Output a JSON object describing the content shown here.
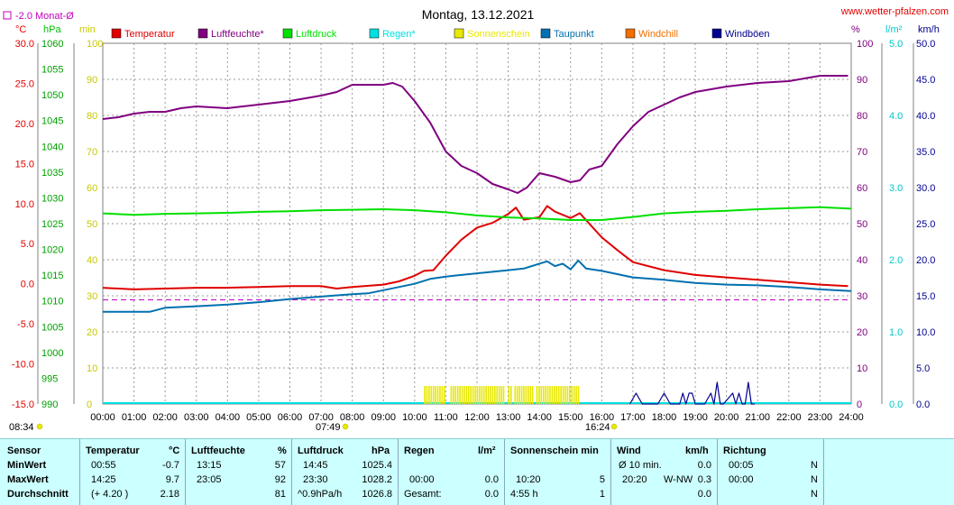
{
  "title": "Montag, 13.12.2021",
  "site": "www.wetter-pfalzen.com",
  "avg_label": "-2.0 Monat-Ø",
  "colors": {
    "temperatur": "#e00000",
    "luftfeuchte": "#800080",
    "luftdruck": "#00e000",
    "regen": "#00e0e0",
    "sonnenschein": "#e8e800",
    "taupunkt": "#0070b0",
    "windchill": "#f07000",
    "windboeen": "#000090"
  },
  "legend": [
    {
      "key": "temperatur",
      "label": "Temperatur"
    },
    {
      "key": "luftfeuchte",
      "label": "Luftfeuchte*"
    },
    {
      "key": "luftdruck",
      "label": "Luftdruck"
    },
    {
      "key": "regen",
      "label": "Regen*"
    },
    {
      "key": "sonnenschein",
      "label": "Sonnenschein"
    },
    {
      "key": "taupunkt",
      "label": "Taupunkt"
    },
    {
      "key": "windchill",
      "label": "Windchill"
    },
    {
      "key": "windboeen",
      "label": "Windböen"
    }
  ],
  "axis_units": {
    "temp": "°C",
    "press": "hPa",
    "sun": "min",
    "hum": "%",
    "rain": "l/m²",
    "wind": "km/h"
  },
  "sunrise": "07:49",
  "sunset": "16:24",
  "daylen": "08:34",
  "chart_data": {
    "type": "line",
    "x_ticks": [
      "00:00",
      "01:00",
      "02:00",
      "03:00",
      "04:00",
      "05:00",
      "06:00",
      "07:00",
      "08:00",
      "09:00",
      "10:00",
      "11:00",
      "12:00",
      "13:00",
      "14:00",
      "15:00",
      "16:00",
      "17:00",
      "18:00",
      "19:00",
      "20:00",
      "21:00",
      "22:00",
      "23:00",
      "24:00"
    ],
    "axes": {
      "temp": {
        "range": [
          -15,
          30
        ],
        "ticks": [
          "30.0",
          "25.0",
          "20.0",
          "15.0",
          "10.0",
          "5.0",
          "0.0",
          "-5.0",
          "-10.0",
          "-15.0"
        ]
      },
      "press": {
        "range": [
          990,
          1060
        ],
        "ticks": [
          "1060",
          "1055",
          "1050",
          "1045",
          "1040",
          "1035",
          "1030",
          "1025",
          "1020",
          "1015",
          "1010",
          "1005",
          "1000",
          "995",
          "990"
        ]
      },
      "sun": {
        "range": [
          0,
          100
        ],
        "ticks": [
          "100",
          "90",
          "80",
          "70",
          "60",
          "50",
          "40",
          "30",
          "20",
          "10",
          "0"
        ]
      },
      "hum": {
        "range": [
          0,
          100
        ],
        "ticks": [
          "100",
          "90",
          "80",
          "70",
          "60",
          "50",
          "40",
          "30",
          "20",
          "10",
          "0"
        ]
      },
      "rain": {
        "range": [
          0,
          5
        ],
        "ticks": [
          "5.0",
          "4.0",
          "3.0",
          "2.0",
          "1.0",
          "0.0"
        ]
      },
      "wind": {
        "range": [
          0,
          50
        ],
        "ticks": [
          "50.0",
          "45.0",
          "40.0",
          "35.0",
          "30.0",
          "25.0",
          "20.0",
          "15.0",
          "10.0",
          "5.0",
          "0.0"
        ]
      }
    },
    "month_avg_temp": -2.0,
    "series": [
      {
        "name": "Temperatur",
        "axis": "temp",
        "color": "#e00000",
        "x": [
          0,
          1,
          2,
          3,
          4,
          5,
          6,
          7,
          7.5,
          8,
          9,
          9.5,
          10,
          10.3,
          10.6,
          11,
          11.5,
          12,
          12.5,
          13,
          13.25,
          13.5,
          14,
          14.25,
          14.5,
          15,
          15.3,
          15.6,
          16,
          16.5,
          17,
          18,
          19,
          20,
          21,
          22,
          23,
          23.9
        ],
        "y": [
          -0.5,
          -0.7,
          -0.6,
          -0.5,
          -0.5,
          -0.4,
          -0.3,
          -0.3,
          -0.6,
          -0.4,
          -0.1,
          0.3,
          1.0,
          1.6,
          1.7,
          3.5,
          5.5,
          7.0,
          7.6,
          8.7,
          9.5,
          8.0,
          8.3,
          9.7,
          9.0,
          8.2,
          8.8,
          7.5,
          5.8,
          4.2,
          2.7,
          1.7,
          1.1,
          0.8,
          0.5,
          0.2,
          -0.1,
          -0.3
        ]
      },
      {
        "name": "Luftfeuchte*",
        "axis": "hum",
        "color": "#800080",
        "x": [
          0,
          0.5,
          1,
          1.5,
          2,
          2.5,
          3,
          4,
          5,
          6,
          7,
          7.5,
          8,
          9,
          9.3,
          9.6,
          10,
          10.5,
          11,
          11.5,
          12,
          12.5,
          13,
          13.3,
          13.6,
          14,
          14.5,
          15,
          15.3,
          15.6,
          16,
          16.5,
          17,
          17.5,
          18,
          18.5,
          19,
          20,
          21,
          22,
          23,
          23.9
        ],
        "y": [
          79,
          79.5,
          80.5,
          81,
          81,
          82,
          82.5,
          82,
          83,
          84,
          85.5,
          86.5,
          88.5,
          88.5,
          89,
          88,
          84,
          78,
          70,
          66,
          64,
          61,
          59.5,
          58.5,
          60,
          64,
          63,
          61.5,
          62,
          65,
          66,
          72,
          77,
          81,
          83,
          85,
          86.5,
          88,
          89,
          89.5,
          91,
          91
        ]
      },
      {
        "name": "Luftdruck",
        "axis": "press",
        "color": "#00e000",
        "x": [
          0,
          1,
          2,
          3,
          4,
          5,
          6,
          7,
          8,
          9,
          10,
          11,
          12,
          13,
          14,
          15,
          16,
          17,
          18,
          19,
          20,
          21,
          22,
          23,
          24
        ],
        "y": [
          1027.0,
          1026.7,
          1026.9,
          1027.0,
          1027.1,
          1027.3,
          1027.4,
          1027.6,
          1027.7,
          1027.8,
          1027.6,
          1027.2,
          1026.6,
          1026.2,
          1026.0,
          1025.7,
          1025.7,
          1026.3,
          1027.0,
          1027.3,
          1027.5,
          1027.8,
          1028.0,
          1028.2,
          1027.9
        ]
      },
      {
        "name": "Taupunkt",
        "axis": "temp",
        "color": "#0070b0",
        "x": [
          0,
          1,
          1.5,
          2,
          3,
          4,
          5,
          6,
          7,
          8,
          8.5,
          9,
          10,
          10.5,
          11,
          12,
          13,
          13.5,
          14,
          14.25,
          14.5,
          14.75,
          15,
          15.25,
          15.5,
          16,
          17,
          18,
          19,
          20,
          21,
          22,
          23,
          24
        ],
        "y": [
          -3.5,
          -3.5,
          -3.5,
          -3.0,
          -2.8,
          -2.6,
          -2.3,
          -1.9,
          -1.6,
          -1.3,
          -1.2,
          -0.8,
          0.0,
          0.6,
          0.9,
          1.3,
          1.7,
          1.9,
          2.5,
          2.8,
          2.2,
          2.5,
          1.8,
          2.9,
          1.9,
          1.6,
          0.8,
          0.5,
          0.1,
          -0.1,
          -0.2,
          -0.4,
          -0.7,
          -0.9
        ]
      },
      {
        "name": "Sonnenschein",
        "axis": "sun",
        "color": "#e8e800",
        "blocks": [
          [
            10.3,
            11.0
          ],
          [
            11.15,
            12.85
          ],
          [
            13.0,
            13.1
          ],
          [
            13.2,
            13.8
          ],
          [
            13.9,
            15.3
          ]
        ],
        "value": 5
      },
      {
        "name": "Windböen",
        "axis": "wind",
        "color": "#000090",
        "x": [
          16.9,
          17.1,
          17.3,
          17.8,
          18,
          18.2,
          18.5,
          18.6,
          18.7,
          18.8,
          18.9,
          19.0,
          19.3,
          19.5,
          19.6,
          19.7,
          19.8,
          19.9,
          20.2,
          20.3,
          20.4,
          20.5,
          20.6,
          20.7,
          20.8,
          20.9
        ],
        "y": [
          0,
          1.5,
          0,
          0,
          1.5,
          0,
          0,
          1.5,
          0,
          1.5,
          1.5,
          0,
          0,
          1.5,
          0,
          3,
          0,
          0,
          1.5,
          0,
          1.5,
          0,
          0,
          3,
          0,
          0
        ]
      }
    ]
  },
  "table": {
    "sensor": {
      "h": "Sensor",
      "rows": [
        "MinWert",
        "MaxWert",
        "Durchschnitt"
      ]
    },
    "temperatur": {
      "h": "Temperatur",
      "u": "°C",
      "rows": [
        [
          "00:55",
          "-0.7"
        ],
        [
          "14:25",
          "9.7"
        ],
        [
          "(+ 4.20 )",
          "2.18"
        ]
      ]
    },
    "luftfeuchte": {
      "h": "Luftfeuchte",
      "u": "%",
      "rows": [
        [
          "13:15",
          "57"
        ],
        [
          "23:05",
          "92"
        ],
        [
          "",
          "81"
        ]
      ]
    },
    "luftdruck": {
      "h": "Luftdruck",
      "u": "hPa",
      "rows": [
        [
          "14:45",
          "1025.4"
        ],
        [
          "23:30",
          "1028.2"
        ],
        [
          "^0.9hPa/h",
          "1026.8"
        ]
      ]
    },
    "regen": {
      "h": "Regen",
      "u": "l/m²",
      "rows": [
        [
          "",
          ""
        ],
        [
          "00:00",
          "0.0"
        ],
        [
          "Gesamt:",
          "0.0"
        ]
      ]
    },
    "sonne": {
      "h": "Sonnenschein min",
      "rows": [
        [
          "",
          ""
        ],
        [
          "10:20",
          "5"
        ],
        [
          "4:55 h",
          "1"
        ]
      ]
    },
    "wind": {
      "h": "Wind",
      "u": "km/h",
      "rows": [
        [
          "Ø 10 min.",
          "",
          "0.0"
        ],
        [
          "20:20",
          "W-NW",
          "0.3"
        ],
        [
          "",
          "",
          "0.0"
        ]
      ]
    },
    "richtung": {
      "h": "Richtung",
      "rows": [
        [
          "00:05",
          "N"
        ],
        [
          "00:00",
          "N"
        ],
        [
          "",
          "N"
        ]
      ]
    }
  }
}
